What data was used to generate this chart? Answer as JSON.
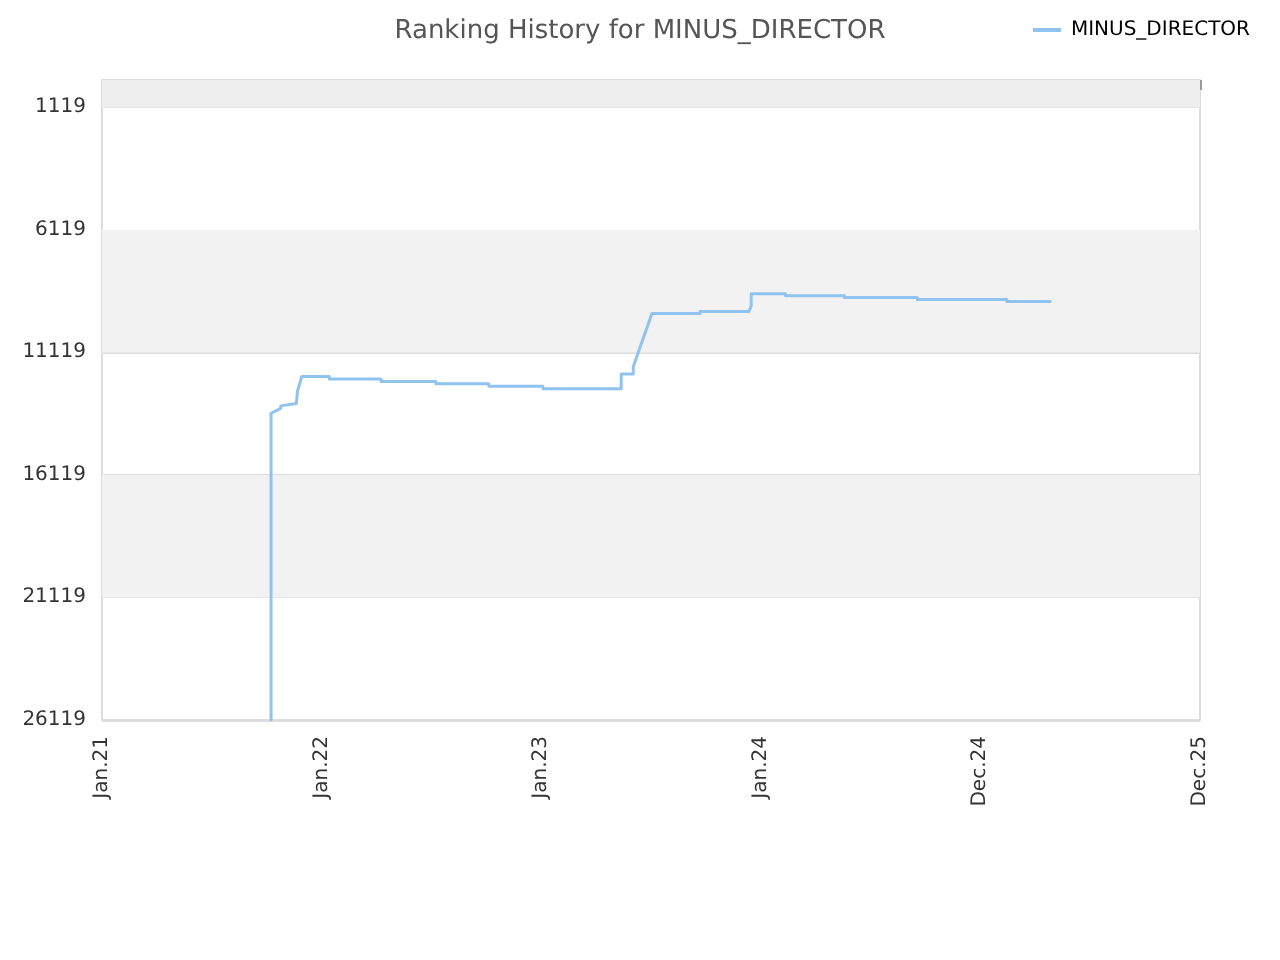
{
  "chart_data": {
    "type": "line",
    "title": "Ranking History for MINUS_DIRECTOR",
    "legend": "top right",
    "grid": "y",
    "marker": "none",
    "line_style": "solid",
    "bands": [
      {
        "axis": "y",
        "from": 0,
        "to": 1119,
        "color": "#eeeeee"
      },
      {
        "axis": "y",
        "from": 6119,
        "to": 11119,
        "color": "#f2f2f2"
      },
      {
        "axis": "y",
        "from": 16119,
        "to": 21119,
        "color": "#f2f2f2"
      }
    ],
    "ylim": [
      26119,
      0
    ],
    "yticks": [
      1119,
      6119,
      11119,
      16119,
      21119,
      26119
    ],
    "xlim": [
      "2021-01-01",
      "2025-12-31"
    ],
    "xticks": [
      {
        "value": "2021-01-01",
        "label": "Jan.21"
      },
      {
        "value": "2022-01-01",
        "label": "Jan.22"
      },
      {
        "value": "2023-01-01",
        "label": "Jan.23"
      },
      {
        "value": "2024-01-01",
        "label": "Jan.24"
      },
      {
        "value": "2024-12-31",
        "label": "Dec.24"
      },
      {
        "value": "2025-12-31",
        "label": "Dec.25"
      }
    ],
    "series": [
      {
        "name": "MINUS_DIRECTOR",
        "color": "#90c4f0",
        "x": [
          "2021-10-09",
          "2021-10-09",
          "2021-10-25",
          "2021-10-25",
          "2021-11-20",
          "2021-11-22",
          "2021-11-29",
          "2022-01-14",
          "2022-01-14",
          "2022-04-10",
          "2022-04-10",
          "2022-07-10",
          "2022-07-10",
          "2022-10-06",
          "2022-10-06",
          "2023-01-04",
          "2023-01-04",
          "2023-05-14",
          "2023-05-14",
          "2023-06-03",
          "2023-06-03",
          "2023-07-04",
          "2023-09-22",
          "2023-09-22",
          "2023-12-12",
          "2023-12-16",
          "2023-12-16",
          "2024-02-11",
          "2024-02-11",
          "2024-05-19",
          "2024-05-19",
          "2024-09-17",
          "2024-09-17",
          "2025-02-13",
          "2025-02-13",
          "2025-04-26"
        ],
        "values": [
          26119,
          13600,
          13400,
          13300,
          13200,
          12700,
          12100,
          12100,
          12200,
          12200,
          12300,
          12300,
          12400,
          12400,
          12500,
          12500,
          12600,
          12600,
          12000,
          12000,
          11700,
          9530,
          9530,
          9450,
          9450,
          9230,
          8720,
          8720,
          8800,
          8800,
          8880,
          8880,
          8960,
          8960,
          9040,
          9040
        ]
      }
    ]
  }
}
